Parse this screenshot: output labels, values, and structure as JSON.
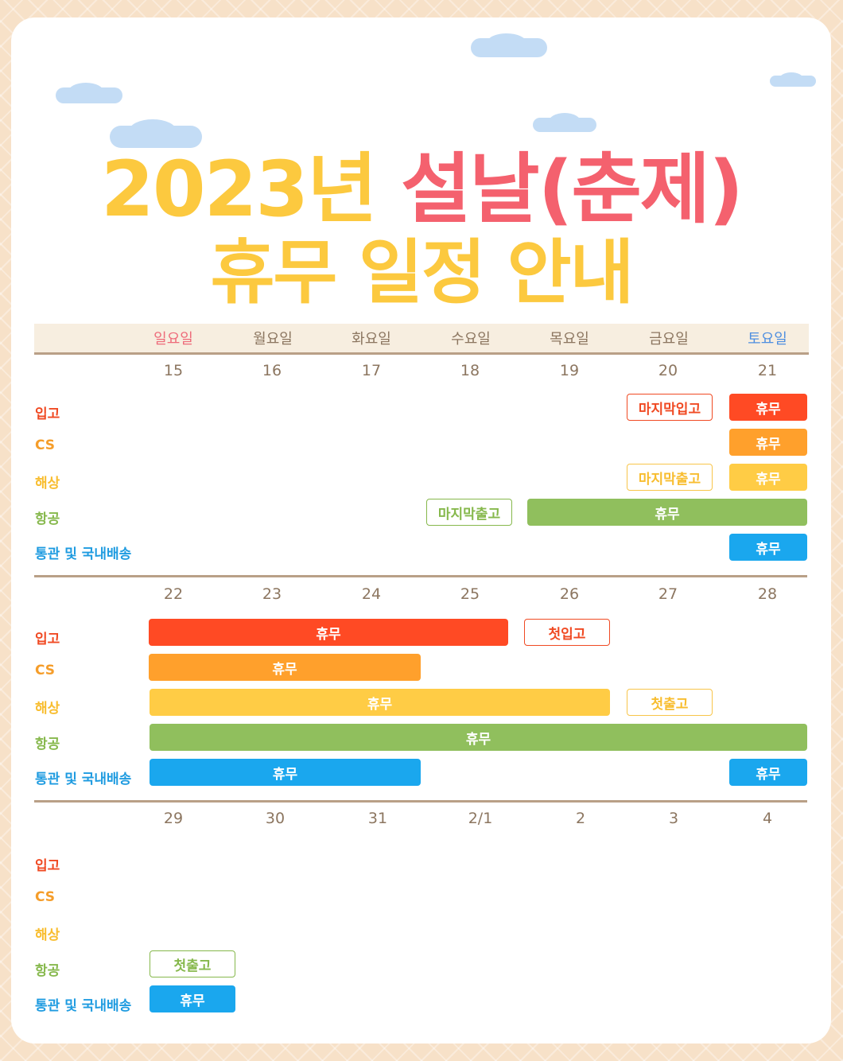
{
  "title": {
    "year": "2023년 ",
    "holiday": "설날(춘제)",
    "subtitle": "휴무 일정 안내"
  },
  "days": [
    "일요일",
    "월요일",
    "화요일",
    "수요일",
    "목요일",
    "금요일",
    "토요일"
  ],
  "categories": {
    "ipgo": "입고",
    "cs": "CS",
    "haesang": "해상",
    "hanggong": "항공",
    "customs": "통관 및 국내배송"
  },
  "weeks": [
    {
      "dates": [
        "15",
        "16",
        "17",
        "18",
        "19",
        "20",
        "21"
      ],
      "bars": {
        "ipgo_last": "마지막입고",
        "ipgo_off": "휴무",
        "cs_off": "휴무",
        "haesang_last": "마지막출고",
        "haesang_off": "휴무",
        "air_last": "마지막출고",
        "air_off": "휴무",
        "customs_off": "휴무"
      }
    },
    {
      "dates": [
        "22",
        "23",
        "24",
        "25",
        "26",
        "27",
        "28"
      ],
      "bars": {
        "ipgo_off": "휴무",
        "ipgo_first": "첫입고",
        "cs_off": "휴무",
        "haesang_off": "휴무",
        "haesang_first": "첫출고",
        "air_off": "휴무",
        "customs_off": "휴무",
        "customs_off2": "휴무"
      }
    },
    {
      "dates": [
        "29",
        "30",
        "31",
        "2/1",
        "2",
        "3",
        "4"
      ],
      "bars": {
        "air_first": "첫출고",
        "customs_off": "휴무"
      }
    }
  ],
  "colors": {
    "title_yellow": "#fcc93f",
    "title_red": "#f4616e",
    "ipgo": "#ff4a24",
    "cs": "#ffa02c",
    "haesang": "#ffcc45",
    "hanggong": "#90bf5d",
    "customs": "#1aa7ee"
  }
}
